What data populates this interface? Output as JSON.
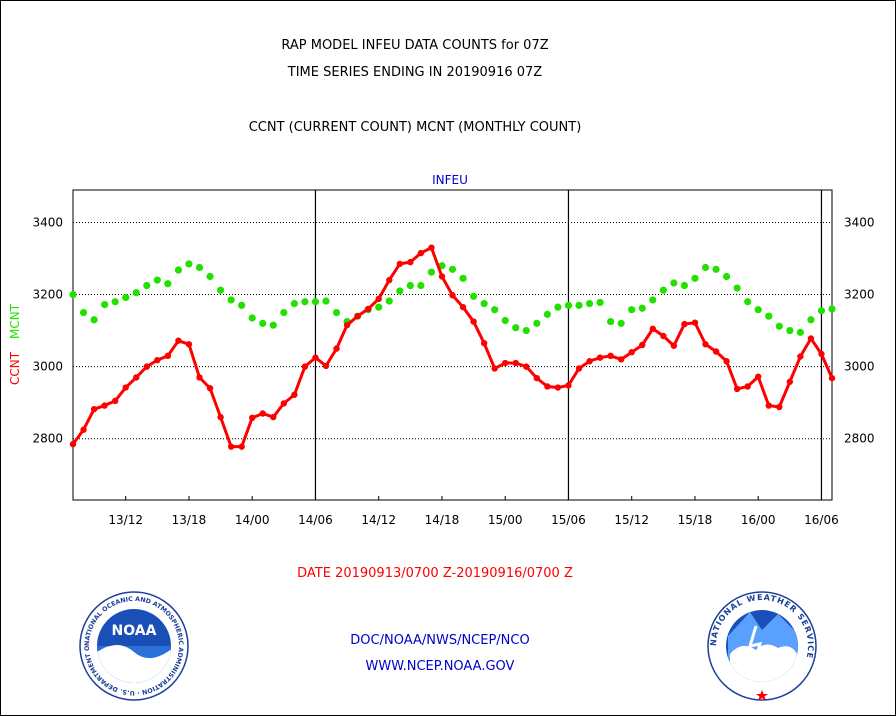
{
  "header": {
    "title_line1": "RAP MODEL INFEU DATA COUNTS for 07Z",
    "title_line2": "TIME SERIES ENDING IN 20190916 07Z",
    "subtitle": "CCNT (CURRENT COUNT) MCNT (MONTHLY COUNT)"
  },
  "footer": {
    "date_range": "DATE 20190913/0700 Z-20190916/0700 Z",
    "org_line": "DOC/NOAA/NWS/NCEP/NCO",
    "url": "WWW.NCEP.NOAA.GOV"
  },
  "logos": {
    "noaa": {
      "center_text": "NOAA",
      "ring_text": "NATIONAL OCEANIC AND ATMOSPHERIC ADMINISTRATION · U.S. DEPARTMENT OF COMMERCE"
    },
    "nws": {
      "ring_text": "NATIONAL WEATHER SERVICE"
    }
  },
  "colors": {
    "ccnt": "#ff0000",
    "mcnt": "#22e000",
    "text_blue": "#0000cc",
    "text_black": "#000000"
  },
  "chart_data": {
    "type": "line",
    "title": "INFEU",
    "ylabel_left": [
      "CCNT",
      "MCNT"
    ],
    "ylim": [
      2630,
      3490
    ],
    "yticks": [
      2800,
      3000,
      3200,
      3400
    ],
    "ytick_labels": [
      "2800",
      "3000",
      "3200",
      "3400"
    ],
    "x_start_hour": 7,
    "x_end_hour": 79,
    "xtick_hours": [
      12,
      18,
      24,
      30,
      36,
      42,
      48,
      54,
      60,
      66,
      72,
      78
    ],
    "xtick_labels": [
      "13/12",
      "13/18",
      "14/00",
      "14/06",
      "14/12",
      "14/18",
      "15/00",
      "15/06",
      "15/12",
      "15/18",
      "16/00",
      "16/06"
    ],
    "vertical_lines_hours": [
      30,
      54,
      78
    ],
    "x_hours": [
      7,
      8,
      9,
      10,
      11,
      12,
      13,
      14,
      15,
      16,
      17,
      18,
      19,
      20,
      21,
      22,
      23,
      24,
      25,
      26,
      27,
      28,
      29,
      30,
      31,
      32,
      33,
      34,
      35,
      36,
      37,
      38,
      39,
      40,
      41,
      42,
      43,
      44,
      45,
      46,
      47,
      48,
      49,
      50,
      51,
      52,
      53,
      54,
      55,
      56,
      57,
      58,
      59,
      60,
      61,
      62,
      63,
      64,
      65,
      66,
      67,
      68,
      69,
      70,
      71,
      72,
      73,
      74,
      75,
      76,
      77,
      78,
      79
    ],
    "series": [
      {
        "name": "CCNT",
        "color": "#ff0000",
        "values": [
          2785,
          2825,
          2882,
          2892,
          2905,
          2942,
          2970,
          3000,
          3018,
          3030,
          3072,
          3062,
          2970,
          2940,
          2860,
          2778,
          2778,
          2858,
          2870,
          2860,
          2898,
          2922,
          3000,
          3025,
          3002,
          3050,
          3115,
          3140,
          3160,
          3188,
          3240,
          3285,
          3290,
          3315,
          3330,
          3250,
          3198,
          3165,
          3125,
          3065,
          2995,
          3010,
          3010,
          3000,
          2968,
          2945,
          2942,
          2948,
          2995,
          3015,
          3025,
          3030,
          3020,
          3040,
          3060,
          3105,
          3085,
          3058,
          3118,
          3122,
          3062,
          3042,
          3015,
          2938,
          2945,
          2972,
          2892,
          2888,
          2958,
          3028,
          3078,
          3035,
          2968
        ]
      },
      {
        "name": "MCNT",
        "color": "#22e000",
        "values": [
          3200,
          3150,
          3130,
          3172,
          3180,
          3192,
          3205,
          3225,
          3240,
          3230,
          3268,
          3285,
          3275,
          3250,
          3212,
          3185,
          3170,
          3135,
          3120,
          3115,
          3150,
          3175,
          3180,
          3180,
          3182,
          3150,
          3125,
          3140,
          3158,
          3165,
          3182,
          3210,
          3225,
          3225,
          3262,
          3280,
          3270,
          3245,
          3195,
          3175,
          3158,
          3128,
          3108,
          3100,
          3120,
          3145,
          3165,
          3170,
          3170,
          3175,
          3178,
          3125,
          3120,
          3158,
          3162,
          3185,
          3212,
          3232,
          3225,
          3245,
          3275,
          3270,
          3250,
          3218,
          3180,
          3158,
          3140,
          3112,
          3100,
          3095,
          3130,
          3155,
          3160
        ]
      }
    ]
  }
}
